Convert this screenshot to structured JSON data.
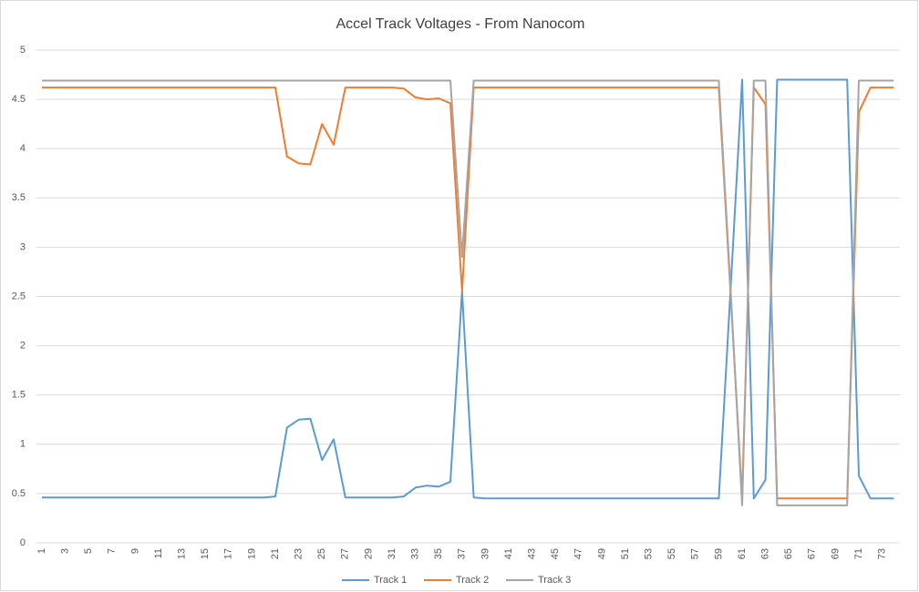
{
  "chart_data": {
    "type": "line",
    "title": "Accel Track Voltages - From Nanocom",
    "categories": [
      1,
      null,
      3,
      null,
      5,
      null,
      7,
      null,
      9,
      null,
      11,
      null,
      13,
      null,
      15,
      null,
      17,
      null,
      19,
      null,
      21,
      null,
      23,
      null,
      25,
      null,
      27,
      null,
      29,
      null,
      31,
      null,
      33,
      null,
      35,
      null,
      37,
      null,
      39,
      null,
      41,
      null,
      43,
      null,
      45,
      null,
      47,
      null,
      49,
      null,
      51,
      null,
      53,
      null,
      55,
      null,
      57,
      null,
      59,
      null,
      61,
      null,
      63,
      null,
      65,
      null,
      67,
      null,
      69,
      null,
      71,
      null,
      73,
      null
    ],
    "series": [
      {
        "name": "Track 1",
        "color": "#5b9bd5",
        "values": [
          0.46,
          0.46,
          0.46,
          0.46,
          0.46,
          0.46,
          0.46,
          0.46,
          0.46,
          0.46,
          0.46,
          0.46,
          0.46,
          0.46,
          0.46,
          0.46,
          0.46,
          0.46,
          0.46,
          0.46,
          0.47,
          1.17,
          1.25,
          1.26,
          0.84,
          1.05,
          0.46,
          0.46,
          0.46,
          0.46,
          0.46,
          0.47,
          0.56,
          0.58,
          0.57,
          0.62,
          2.55,
          0.46,
          0.45,
          0.45,
          0.45,
          0.45,
          0.45,
          0.45,
          0.45,
          0.45,
          0.45,
          0.45,
          0.45,
          0.45,
          0.45,
          0.45,
          0.45,
          0.45,
          0.45,
          0.45,
          0.45,
          0.45,
          0.45,
          2.55,
          4.7,
          0.45,
          0.64,
          4.7,
          4.7,
          4.7,
          4.7,
          4.7,
          4.7,
          4.7,
          0.68,
          0.45,
          0.45,
          0.45
        ]
      },
      {
        "name": "Track 2",
        "color": "#ed7d31",
        "values": [
          4.62,
          4.62,
          4.62,
          4.62,
          4.62,
          4.62,
          4.62,
          4.62,
          4.62,
          4.62,
          4.62,
          4.62,
          4.62,
          4.62,
          4.62,
          4.62,
          4.62,
          4.62,
          4.62,
          4.62,
          4.62,
          3.92,
          3.85,
          3.84,
          4.25,
          4.04,
          4.62,
          4.62,
          4.62,
          4.62,
          4.62,
          4.61,
          4.52,
          4.5,
          4.51,
          4.46,
          2.55,
          4.62,
          4.62,
          4.62,
          4.62,
          4.62,
          4.62,
          4.62,
          4.62,
          4.62,
          4.62,
          4.62,
          4.62,
          4.62,
          4.62,
          4.62,
          4.62,
          4.62,
          4.62,
          4.62,
          4.62,
          4.62,
          4.62,
          2.55,
          0.45,
          4.62,
          4.45,
          0.45,
          0.45,
          0.45,
          0.45,
          0.45,
          0.45,
          0.45,
          4.37,
          4.62,
          4.62,
          4.62
        ]
      },
      {
        "name": "Track 3",
        "color": "#a5a5a5",
        "values": [
          4.69,
          4.69,
          4.69,
          4.69,
          4.69,
          4.69,
          4.69,
          4.69,
          4.69,
          4.69,
          4.69,
          4.69,
          4.69,
          4.69,
          4.69,
          4.69,
          4.69,
          4.69,
          4.69,
          4.69,
          4.69,
          4.69,
          4.69,
          4.69,
          4.69,
          4.69,
          4.69,
          4.69,
          4.69,
          4.69,
          4.69,
          4.69,
          4.69,
          4.69,
          4.69,
          4.69,
          2.9,
          4.69,
          4.69,
          4.69,
          4.69,
          4.69,
          4.69,
          4.69,
          4.69,
          4.69,
          4.69,
          4.69,
          4.69,
          4.69,
          4.69,
          4.69,
          4.69,
          4.69,
          4.69,
          4.69,
          4.69,
          4.69,
          4.69,
          2.6,
          0.38,
          4.69,
          4.69,
          0.38,
          0.38,
          0.38,
          0.38,
          0.38,
          0.38,
          0.38,
          4.69,
          4.69,
          4.69,
          4.69
        ]
      }
    ],
    "ylim": [
      0,
      5
    ],
    "yticks": [
      0,
      0.5,
      1,
      1.5,
      2,
      2.5,
      3,
      3.5,
      4,
      4.5,
      5
    ],
    "grid": true,
    "legend": "bottom"
  }
}
